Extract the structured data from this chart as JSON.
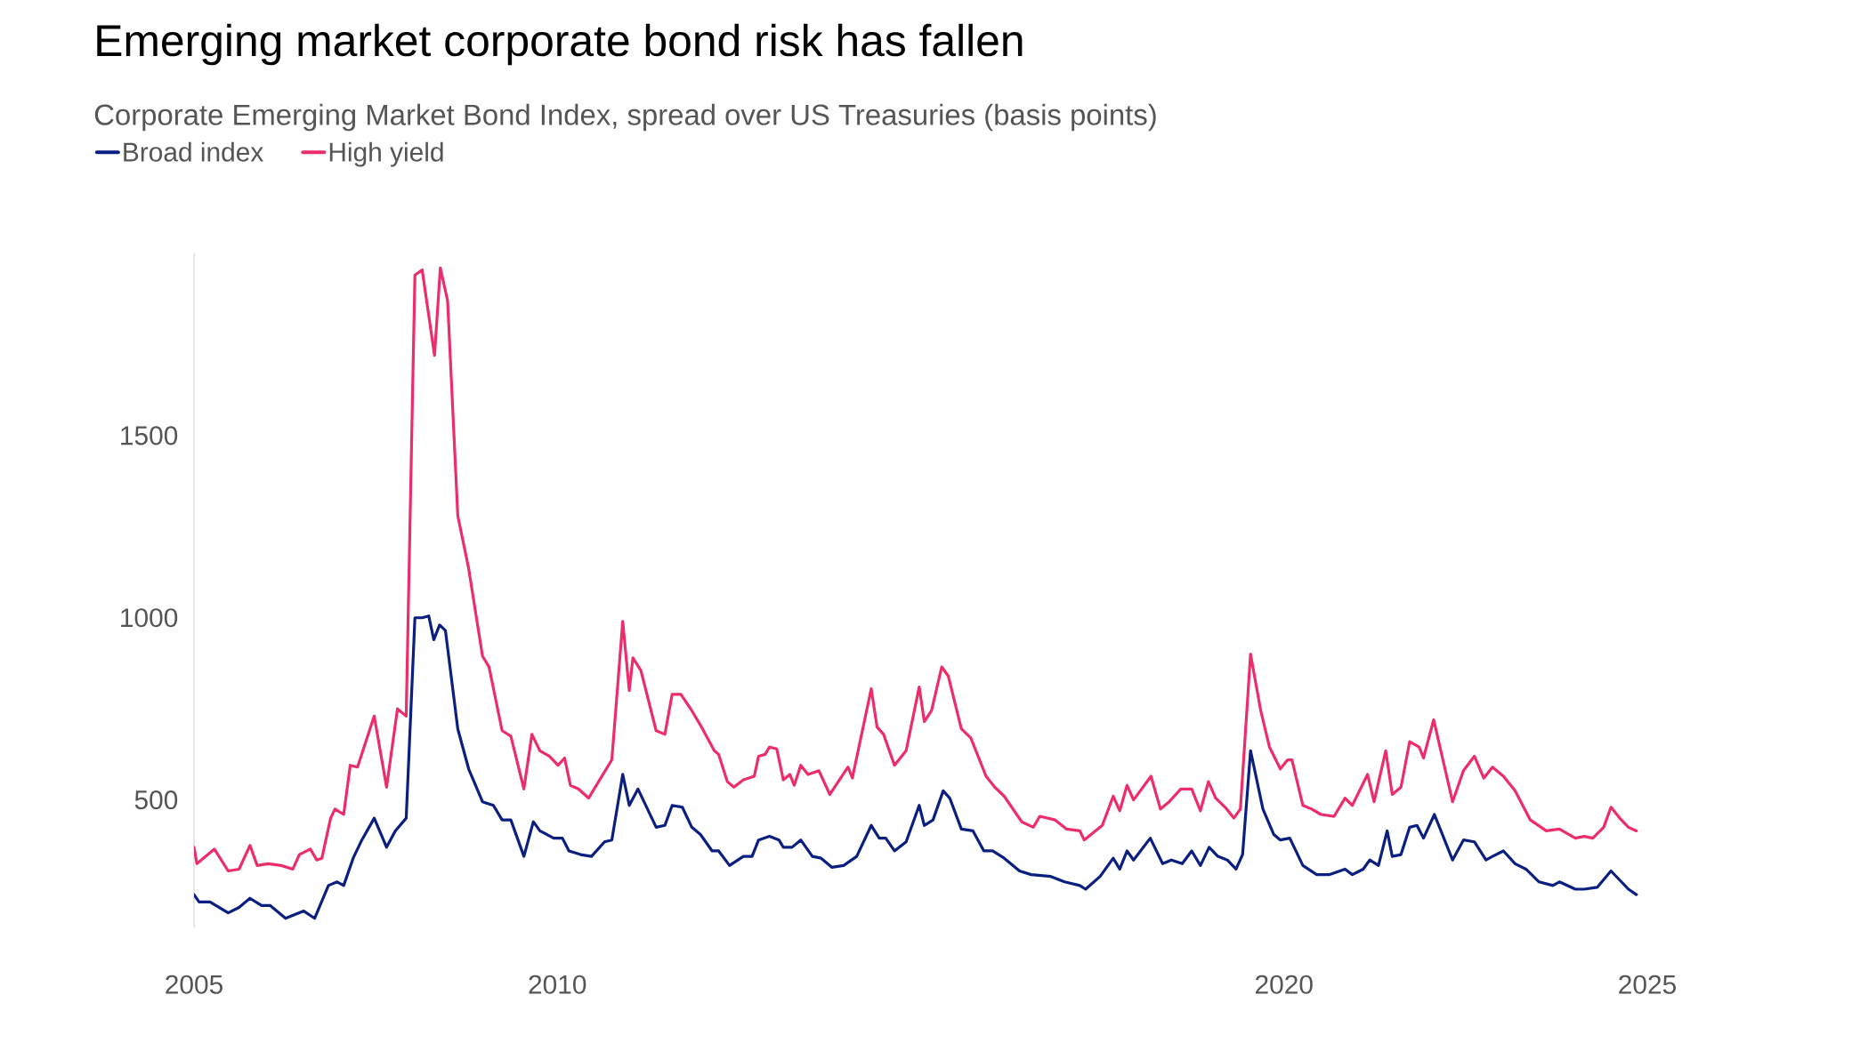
{
  "chart_data": {
    "type": "line",
    "title": "Emerging market corporate bond risk has fallen",
    "subtitle": "Corporate Emerging Market Bond Index, spread over US Treasuries (basis points)",
    "xlim": [
      2005,
      2025
    ],
    "xticks": [
      2005,
      2010,
      2020,
      2025
    ],
    "ylim": [
      150,
      2000
    ],
    "yticks": [
      500,
      1000,
      1500
    ],
    "legend": "top left",
    "series": [
      {
        "name": "Broad index",
        "color": "#0b1f80",
        "x": [
          2005.0,
          2005.07,
          2005.22,
          2005.47,
          2005.62,
          2005.77,
          2005.93,
          2006.05,
          2006.26,
          2006.51,
          2006.66,
          2006.85,
          2006.97,
          2007.06,
          2007.19,
          2007.31,
          2007.48,
          2007.65,
          2007.77,
          2007.92,
          2008.04,
          2008.14,
          2008.23,
          2008.3,
          2008.38,
          2008.46,
          2008.63,
          2008.78,
          2008.97,
          2009.12,
          2009.24,
          2009.36,
          2009.54,
          2009.67,
          2009.76,
          2009.95,
          2010.07,
          2010.16,
          2010.32,
          2010.47,
          2010.65,
          2010.75,
          2010.9,
          2010.99,
          2011.11,
          2011.36,
          2011.48,
          2011.58,
          2011.72,
          2011.85,
          2011.97,
          2012.13,
          2012.22,
          2012.37,
          2012.56,
          2012.68,
          2012.77,
          2012.92,
          2013.05,
          2013.11,
          2013.23,
          2013.35,
          2013.51,
          2013.63,
          2013.78,
          2013.94,
          2014.12,
          2014.32,
          2014.43,
          2014.52,
          2014.64,
          2014.8,
          2014.98,
          2015.05,
          2015.17,
          2015.31,
          2015.4,
          2015.56,
          2015.72,
          2015.87,
          2015.99,
          2016.15,
          2016.36,
          2016.52,
          2016.79,
          2016.98,
          2017.19,
          2017.27,
          2017.47,
          2017.65,
          2017.74,
          2017.84,
          2017.93,
          2018.16,
          2018.33,
          2018.45,
          2018.6,
          2018.73,
          2018.85,
          2018.97,
          2019.09,
          2019.22,
          2019.34,
          2019.43,
          2019.54,
          2019.71,
          2019.86,
          2019.95,
          2020.08,
          2020.26,
          2020.45,
          2020.63,
          2020.84,
          2020.94,
          2021.09,
          2021.18,
          2021.3,
          2021.42,
          2021.49,
          2021.61,
          2021.73,
          2021.83,
          2021.92,
          2022.07,
          2022.32,
          2022.47,
          2022.62,
          2022.78,
          2022.87,
          2023.02,
          2023.18,
          2023.33,
          2023.51,
          2023.7,
          2023.79,
          2024.01,
          2024.13,
          2024.31,
          2024.5,
          2024.62,
          2024.74,
          2024.85
        ],
        "values": [
          240,
          220,
          220,
          190,
          205,
          230,
          210,
          210,
          175,
          195,
          175,
          265,
          275,
          265,
          340,
          390,
          450,
          370,
          415,
          450,
          1000,
          1000,
          1005,
          940,
          980,
          965,
          695,
          585,
          495,
          485,
          445,
          445,
          345,
          440,
          415,
          395,
          395,
          360,
          350,
          345,
          385,
          390,
          570,
          485,
          530,
          425,
          430,
          485,
          480,
          425,
          405,
          360,
          360,
          320,
          345,
          345,
          390,
          400,
          390,
          370,
          370,
          390,
          345,
          340,
          315,
          320,
          345,
          430,
          395,
          395,
          360,
          385,
          485,
          430,
          445,
          525,
          505,
          420,
          415,
          360,
          360,
          340,
          305,
          295,
          290,
          275,
          265,
          255,
          290,
          340,
          310,
          360,
          335,
          395,
          325,
          335,
          325,
          360,
          320,
          370,
          345,
          335,
          310,
          350,
          635,
          475,
          405,
          390,
          395,
          320,
          295,
          295,
          310,
          295,
          310,
          335,
          320,
          415,
          345,
          350,
          425,
          430,
          395,
          460,
          335,
          390,
          385,
          335,
          345,
          360,
          325,
          310,
          275,
          265,
          275,
          255,
          255,
          260,
          305,
          280,
          255,
          240
        ]
      },
      {
        "name": "High yield",
        "color": "#ec2d6a",
        "x": [
          2005.0,
          2005.04,
          2005.28,
          2005.47,
          2005.62,
          2005.77,
          2005.87,
          2006.02,
          2006.2,
          2006.36,
          2006.45,
          2006.6,
          2006.69,
          2006.76,
          2006.88,
          2006.94,
          2007.06,
          2007.15,
          2007.25,
          2007.48,
          2007.65,
          2007.8,
          2007.92,
          2008.04,
          2008.14,
          2008.31,
          2008.39,
          2008.49,
          2008.63,
          2008.78,
          2008.97,
          2009.06,
          2009.24,
          2009.36,
          2009.54,
          2009.65,
          2009.76,
          2009.89,
          2010.01,
          2010.1,
          2010.18,
          2010.29,
          2010.43,
          2010.75,
          2010.9,
          2010.99,
          2011.04,
          2011.15,
          2011.36,
          2011.48,
          2011.58,
          2011.7,
          2011.85,
          2011.97,
          2012.16,
          2012.22,
          2012.34,
          2012.43,
          2012.56,
          2012.71,
          2012.77,
          2012.86,
          2012.92,
          2013.02,
          2013.11,
          2013.2,
          2013.26,
          2013.35,
          2013.45,
          2013.6,
          2013.75,
          2014.0,
          2014.06,
          2014.32,
          2014.4,
          2014.49,
          2014.64,
          2014.8,
          2014.98,
          2015.05,
          2015.15,
          2015.29,
          2015.38,
          2015.56,
          2015.69,
          2015.9,
          2016.02,
          2016.15,
          2016.39,
          2016.55,
          2016.64,
          2016.85,
          2017.01,
          2017.19,
          2017.25,
          2017.5,
          2017.65,
          2017.74,
          2017.84,
          2017.93,
          2018.17,
          2018.3,
          2018.42,
          2018.58,
          2018.73,
          2018.85,
          2018.96,
          2019.06,
          2019.19,
          2019.31,
          2019.4,
          2019.54,
          2019.68,
          2019.8,
          2019.95,
          2020.05,
          2020.11,
          2020.26,
          2020.38,
          2020.51,
          2020.69,
          2020.84,
          2020.94,
          2021.15,
          2021.24,
          2021.4,
          2021.49,
          2021.61,
          2021.73,
          2021.86,
          2021.92,
          2022.06,
          2022.32,
          2022.47,
          2022.62,
          2022.75,
          2022.87,
          2023.02,
          2023.18,
          2023.39,
          2023.61,
          2023.79,
          2024.01,
          2024.13,
          2024.25,
          2024.4,
          2024.5,
          2024.62,
          2024.74,
          2024.85
        ],
        "values": [
          370,
          325,
          365,
          305,
          310,
          375,
          320,
          325,
          320,
          310,
          350,
          365,
          335,
          340,
          450,
          475,
          460,
          595,
          590,
          730,
          535,
          750,
          730,
          1940,
          1955,
          1720,
          1960,
          1870,
          1280,
          1135,
          895,
          865,
          690,
          675,
          530,
          680,
          635,
          620,
          595,
          615,
          540,
          530,
          505,
          610,
          990,
          800,
          890,
          855,
          690,
          680,
          790,
          790,
          745,
          705,
          635,
          625,
          550,
          535,
          555,
          565,
          620,
          625,
          645,
          640,
          555,
          570,
          540,
          595,
          570,
          580,
          515,
          590,
          560,
          805,
          700,
          680,
          595,
          635,
          810,
          715,
          745,
          865,
          840,
          695,
          670,
          565,
          535,
          510,
          440,
          425,
          455,
          445,
          420,
          415,
          390,
          430,
          510,
          470,
          540,
          500,
          565,
          475,
          495,
          530,
          530,
          470,
          550,
          505,
          480,
          450,
          475,
          900,
          745,
          645,
          585,
          610,
          610,
          485,
          475,
          460,
          455,
          505,
          485,
          570,
          495,
          635,
          515,
          535,
          660,
          645,
          615,
          720,
          495,
          580,
          620,
          560,
          590,
          565,
          525,
          445,
          415,
          420,
          395,
          400,
          395,
          425,
          480,
          450,
          425,
          415
        ]
      }
    ]
  }
}
